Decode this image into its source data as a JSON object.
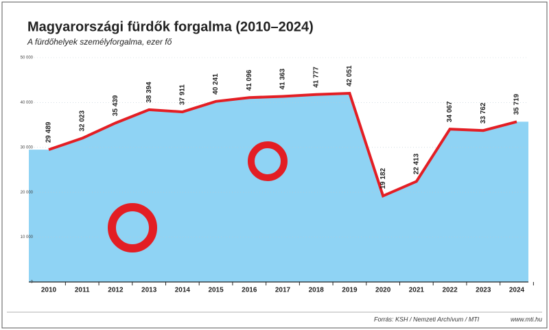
{
  "chart_data": {
    "type": "area-line",
    "title": "Magyarországi fürdők forgalma (2010–2024)",
    "subtitle": "A fürdőhelyek személyforgalma, ezer fő",
    "categories": [
      "2010",
      "2011",
      "2012",
      "2013",
      "2014",
      "2015",
      "2016",
      "2017",
      "2018",
      "2019",
      "2020",
      "2021",
      "2022",
      "2023",
      "2024"
    ],
    "values": [
      29489,
      32023,
      35439,
      38394,
      37911,
      40241,
      41096,
      41363,
      41777,
      42051,
      19182,
      22413,
      34067,
      33762,
      35719
    ],
    "value_labels": [
      "29 489",
      "32 023",
      "35 439",
      "38 394",
      "37 911",
      "40 241",
      "41 096",
      "41 363",
      "41 777",
      "42 051",
      "19 182",
      "22 413",
      "34 067",
      "33 762",
      "35 719"
    ],
    "color": "#e31e24",
    "area_color": "#8fd3f4",
    "ylim": [
      0,
      50000
    ],
    "yticks": [
      0,
      {
        "value": 10000,
        "label": "10 000"
      },
      {
        "value": 20000,
        "label": "20 000"
      },
      {
        "value": 30000,
        "label": "30 000"
      },
      {
        "value": 40000,
        "label": "40 000"
      },
      {
        "value": 50000,
        "label": "50 000"
      }
    ],
    "grid": true,
    "source": "Forrás: KSH / Nemzeti Archívum / MTI",
    "website": "www.mti.hu"
  }
}
